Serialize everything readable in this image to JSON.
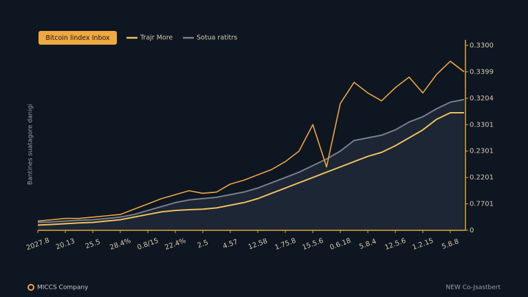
{
  "chart_data": {
    "type": "line",
    "y_label": "Bantines suatagore danigi",
    "footer_left": "MICCS Company",
    "footer_right": "NEW Co-Jsastbert",
    "x": [
      0,
      1,
      2,
      3,
      4,
      5,
      6,
      7,
      8,
      9,
      10,
      11,
      12,
      13,
      14,
      15,
      16,
      17,
      18,
      19,
      20,
      21,
      22,
      23,
      24,
      25,
      26,
      27,
      28,
      29,
      30,
      31
    ],
    "xlim": [
      0,
      31
    ],
    "xticks": [
      {
        "value": 0,
        "label": "2027.8"
      },
      {
        "value": 2,
        "label": "20.13"
      },
      {
        "value": 4,
        "label": "25.5"
      },
      {
        "value": 6,
        "label": "28.4%"
      },
      {
        "value": 8,
        "label": "0.8/15"
      },
      {
        "value": 10,
        "label": "22.4%"
      },
      {
        "value": 12,
        "label": "2.5"
      },
      {
        "value": 14,
        "label": "4.57"
      },
      {
        "value": 16,
        "label": "12.58"
      },
      {
        "value": 18,
        "label": "1.75.8"
      },
      {
        "value": 20,
        "label": "15.5.6"
      },
      {
        "value": 22,
        "label": "0.6.18"
      },
      {
        "value": 24,
        "label": "5.8.4"
      },
      {
        "value": 26,
        "label": "12.5.6"
      },
      {
        "value": 28,
        "label": "1.2.15"
      },
      {
        "value": 30,
        "label": "5.8.8"
      }
    ],
    "ylim": [
      0,
      7
    ],
    "yticks": [
      0,
      {
        "value": 1,
        "label": "0.7701"
      },
      {
        "value": 2,
        "label": "0.2201"
      },
      {
        "value": 3,
        "label": "0.2301"
      },
      {
        "value": 4,
        "label": "0.3301"
      },
      {
        "value": 5,
        "label": "0.3204"
      },
      {
        "value": 6,
        "label": "0.3399"
      },
      {
        "value": 7,
        "label": "0.3300"
      }
    ],
    "series": [
      {
        "name": "Bitcoin lindex Inbox",
        "color": "#f0a840",
        "values": [
          0.35,
          0.4,
          0.45,
          0.45,
          0.5,
          0.55,
          0.6,
          0.8,
          1.0,
          1.2,
          1.35,
          1.5,
          1.4,
          1.45,
          1.75,
          1.9,
          2.1,
          2.3,
          2.6,
          3.0,
          4.0,
          2.4,
          4.8,
          5.6,
          5.2,
          4.9,
          5.4,
          5.8,
          5.2,
          5.9,
          6.4,
          6.0
        ]
      },
      {
        "name": "Trajr More",
        "color": "#f3c060",
        "values": [
          0.2,
          0.22,
          0.25,
          0.28,
          0.3,
          0.35,
          0.4,
          0.5,
          0.6,
          0.7,
          0.75,
          0.78,
          0.8,
          0.85,
          0.95,
          1.05,
          1.2,
          1.4,
          1.6,
          1.8,
          2.0,
          2.2,
          2.4,
          2.6,
          2.8,
          2.95,
          3.2,
          3.5,
          3.8,
          4.2,
          4.45,
          4.45
        ]
      },
      {
        "name": "Sotua ratitrs",
        "color": "#7a808c",
        "values": [
          0.3,
          0.32,
          0.35,
          0.38,
          0.4,
          0.45,
          0.5,
          0.6,
          0.75,
          0.9,
          1.05,
          1.15,
          1.2,
          1.25,
          1.35,
          1.45,
          1.6,
          1.8,
          2.0,
          2.2,
          2.45,
          2.7,
          3.0,
          3.4,
          3.5,
          3.6,
          3.8,
          4.1,
          4.3,
          4.6,
          4.85,
          4.95
        ]
      }
    ]
  }
}
